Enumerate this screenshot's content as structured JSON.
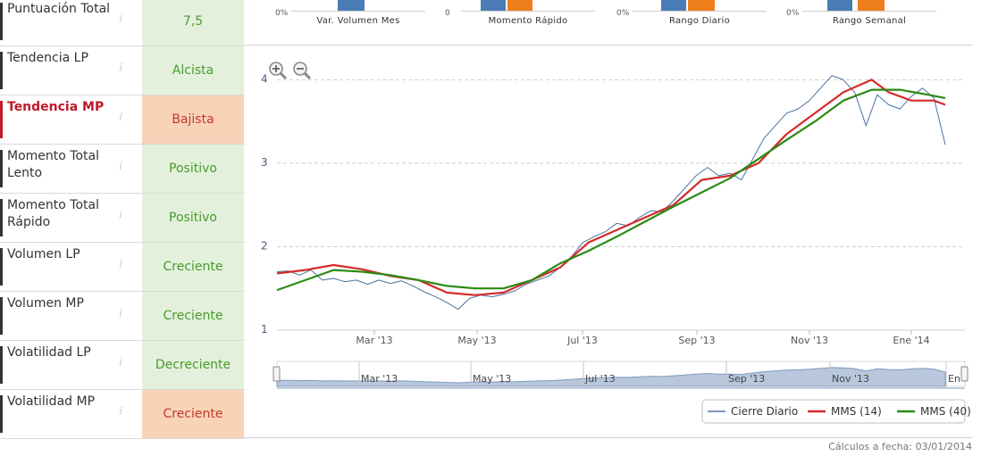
{
  "indicators": [
    {
      "label": "Puntuación Total",
      "info": "i",
      "value": "7,5",
      "value_color": "#4a9a2c",
      "bg": "#e3f1dc",
      "highlight": false
    },
    {
      "label": "Tendencia LP",
      "info": "i",
      "value": "Alcista",
      "value_color": "#4a9a2c",
      "bg": "#e3f1dc",
      "highlight": false
    },
    {
      "label": "Tendencia MP",
      "info": "i",
      "value": "Bajista",
      "value_color": "#c0392b",
      "bg": "#f9d3b8",
      "highlight": true
    },
    {
      "label": "Momento Total Lento",
      "info": "i",
      "value": "Positivo",
      "value_color": "#4a9a2c",
      "bg": "#e3f1dc",
      "highlight": false
    },
    {
      "label": "Momento Total Rápido",
      "info": "i",
      "value": "Positivo",
      "value_color": "#4a9a2c",
      "bg": "#e3f1dc",
      "highlight": false
    },
    {
      "label": "Volumen LP",
      "info": "i",
      "value": "Creciente",
      "value_color": "#4a9a2c",
      "bg": "#e3f1dc",
      "highlight": false
    },
    {
      "label": "Volumen MP",
      "info": "i",
      "value": "Creciente",
      "value_color": "#4a9a2c",
      "bg": "#e3f1dc",
      "highlight": false
    },
    {
      "label": "Volatilidad LP",
      "info": "i",
      "value": "Decreciente",
      "value_color": "#4a9a2c",
      "bg": "#e3f1dc",
      "highlight": false
    },
    {
      "label": "Volatilidad MP",
      "info": "i",
      "value": "Creciente",
      "value_color": "#c0392b",
      "bg": "#f9d3b8",
      "highlight": false
    }
  ],
  "mini_charts": [
    {
      "label": "Var. Volumen Mes",
      "axis_label": "0%",
      "bars": [
        {
          "color": "#4a7db6"
        }
      ]
    },
    {
      "label": "Momento Rápido",
      "axis_label": "0",
      "bars": [
        {
          "color": "#4a7db6"
        },
        {
          "color": "#ef7f1a"
        }
      ]
    },
    {
      "label": "Rango Diario",
      "axis_label": "0%",
      "bars": [
        {
          "color": "#4a7db6"
        },
        {
          "color": "#ef7f1a"
        }
      ]
    },
    {
      "label": "Rango Semanal",
      "axis_label": "0%",
      "bars": [
        {
          "color": "#4a7db6"
        },
        {
          "color": "#ef7f1a"
        }
      ]
    }
  ],
  "chart_data": {
    "type": "line",
    "x_ticks": [
      "Mar '13",
      "May '13",
      "Jul '13",
      "Sep '13",
      "Nov '13",
      "Ene '14"
    ],
    "y_ticks": [
      "1",
      "2",
      "3",
      "4"
    ],
    "ylim": [
      1,
      4.1
    ],
    "grid": true,
    "legend_position": "bottom-right",
    "series": [
      {
        "name": "Cierre Diario",
        "color": "#4a72a0",
        "points": [
          [
            0,
            1.7
          ],
          [
            0.02,
            1.71
          ],
          [
            0.04,
            1.66
          ],
          [
            0.06,
            1.72
          ],
          [
            0.08,
            1.6
          ],
          [
            0.1,
            1.62
          ],
          [
            0.12,
            1.58
          ],
          [
            0.14,
            1.6
          ],
          [
            0.16,
            1.55
          ],
          [
            0.18,
            1.6
          ],
          [
            0.2,
            1.56
          ],
          [
            0.22,
            1.59
          ],
          [
            0.24,
            1.53
          ],
          [
            0.26,
            1.46
          ],
          [
            0.28,
            1.4
          ],
          [
            0.3,
            1.33
          ],
          [
            0.32,
            1.25
          ],
          [
            0.34,
            1.38
          ],
          [
            0.36,
            1.42
          ],
          [
            0.38,
            1.4
          ],
          [
            0.4,
            1.43
          ],
          [
            0.42,
            1.47
          ],
          [
            0.44,
            1.55
          ],
          [
            0.46,
            1.6
          ],
          [
            0.48,
            1.65
          ],
          [
            0.5,
            1.75
          ],
          [
            0.52,
            1.88
          ],
          [
            0.54,
            2.05
          ],
          [
            0.56,
            2.12
          ],
          [
            0.58,
            2.18
          ],
          [
            0.6,
            2.28
          ],
          [
            0.62,
            2.25
          ],
          [
            0.64,
            2.35
          ],
          [
            0.66,
            2.43
          ],
          [
            0.68,
            2.42
          ],
          [
            0.7,
            2.55
          ],
          [
            0.72,
            2.7
          ],
          [
            0.74,
            2.85
          ],
          [
            0.76,
            2.95
          ],
          [
            0.78,
            2.85
          ],
          [
            0.8,
            2.88
          ],
          [
            0.82,
            2.8
          ],
          [
            0.84,
            3.05
          ],
          [
            0.86,
            3.3
          ],
          [
            0.88,
            3.45
          ],
          [
            0.9,
            3.6
          ],
          [
            0.92,
            3.65
          ],
          [
            0.94,
            3.75
          ],
          [
            0.96,
            3.9
          ],
          [
            0.98,
            4.05
          ],
          [
            1,
            4.0
          ],
          [
            1.02,
            3.85
          ],
          [
            1.04,
            3.45
          ],
          [
            1.06,
            3.82
          ],
          [
            1.08,
            3.7
          ],
          [
            1.1,
            3.65
          ],
          [
            1.12,
            3.8
          ],
          [
            1.14,
            3.9
          ],
          [
            1.16,
            3.78
          ],
          [
            1.18,
            3.22
          ]
        ]
      },
      {
        "name": "MMS (14)",
        "color": "#d42a2a",
        "points": [
          [
            0,
            1.68
          ],
          [
            0.05,
            1.72
          ],
          [
            0.1,
            1.78
          ],
          [
            0.15,
            1.73
          ],
          [
            0.2,
            1.65
          ],
          [
            0.25,
            1.6
          ],
          [
            0.3,
            1.45
          ],
          [
            0.35,
            1.42
          ],
          [
            0.4,
            1.45
          ],
          [
            0.45,
            1.6
          ],
          [
            0.5,
            1.75
          ],
          [
            0.55,
            2.05
          ],
          [
            0.6,
            2.2
          ],
          [
            0.65,
            2.35
          ],
          [
            0.7,
            2.5
          ],
          [
            0.75,
            2.8
          ],
          [
            0.8,
            2.85
          ],
          [
            0.85,
            3.0
          ],
          [
            0.9,
            3.35
          ],
          [
            0.95,
            3.6
          ],
          [
            1.0,
            3.85
          ],
          [
            1.05,
            4.0
          ],
          [
            1.08,
            3.85
          ],
          [
            1.12,
            3.75
          ],
          [
            1.16,
            3.75
          ],
          [
            1.18,
            3.7
          ]
        ]
      },
      {
        "name": "MMS (40)",
        "color": "#2a8a14",
        "points": [
          [
            0,
            1.48
          ],
          [
            0.05,
            1.6
          ],
          [
            0.1,
            1.72
          ],
          [
            0.15,
            1.7
          ],
          [
            0.2,
            1.66
          ],
          [
            0.25,
            1.6
          ],
          [
            0.3,
            1.53
          ],
          [
            0.35,
            1.5
          ],
          [
            0.4,
            1.5
          ],
          [
            0.45,
            1.6
          ],
          [
            0.5,
            1.8
          ],
          [
            0.55,
            1.95
          ],
          [
            0.6,
            2.12
          ],
          [
            0.65,
            2.3
          ],
          [
            0.7,
            2.48
          ],
          [
            0.75,
            2.65
          ],
          [
            0.8,
            2.82
          ],
          [
            0.85,
            3.05
          ],
          [
            0.9,
            3.28
          ],
          [
            0.95,
            3.5
          ],
          [
            1.0,
            3.75
          ],
          [
            1.05,
            3.88
          ],
          [
            1.1,
            3.88
          ],
          [
            1.15,
            3.82
          ],
          [
            1.18,
            3.78
          ]
        ]
      }
    ],
    "navigator": {
      "x_ticks": [
        "Mar '13",
        "May '13",
        "Jul '13",
        "Sep '13",
        "Nov '13",
        "En"
      ]
    }
  },
  "zoom": {
    "in_icon": "zoom-in-icon",
    "out_icon": "zoom-out-icon"
  },
  "footer": {
    "text": "Cálculos a fecha: 03/01/2014"
  }
}
